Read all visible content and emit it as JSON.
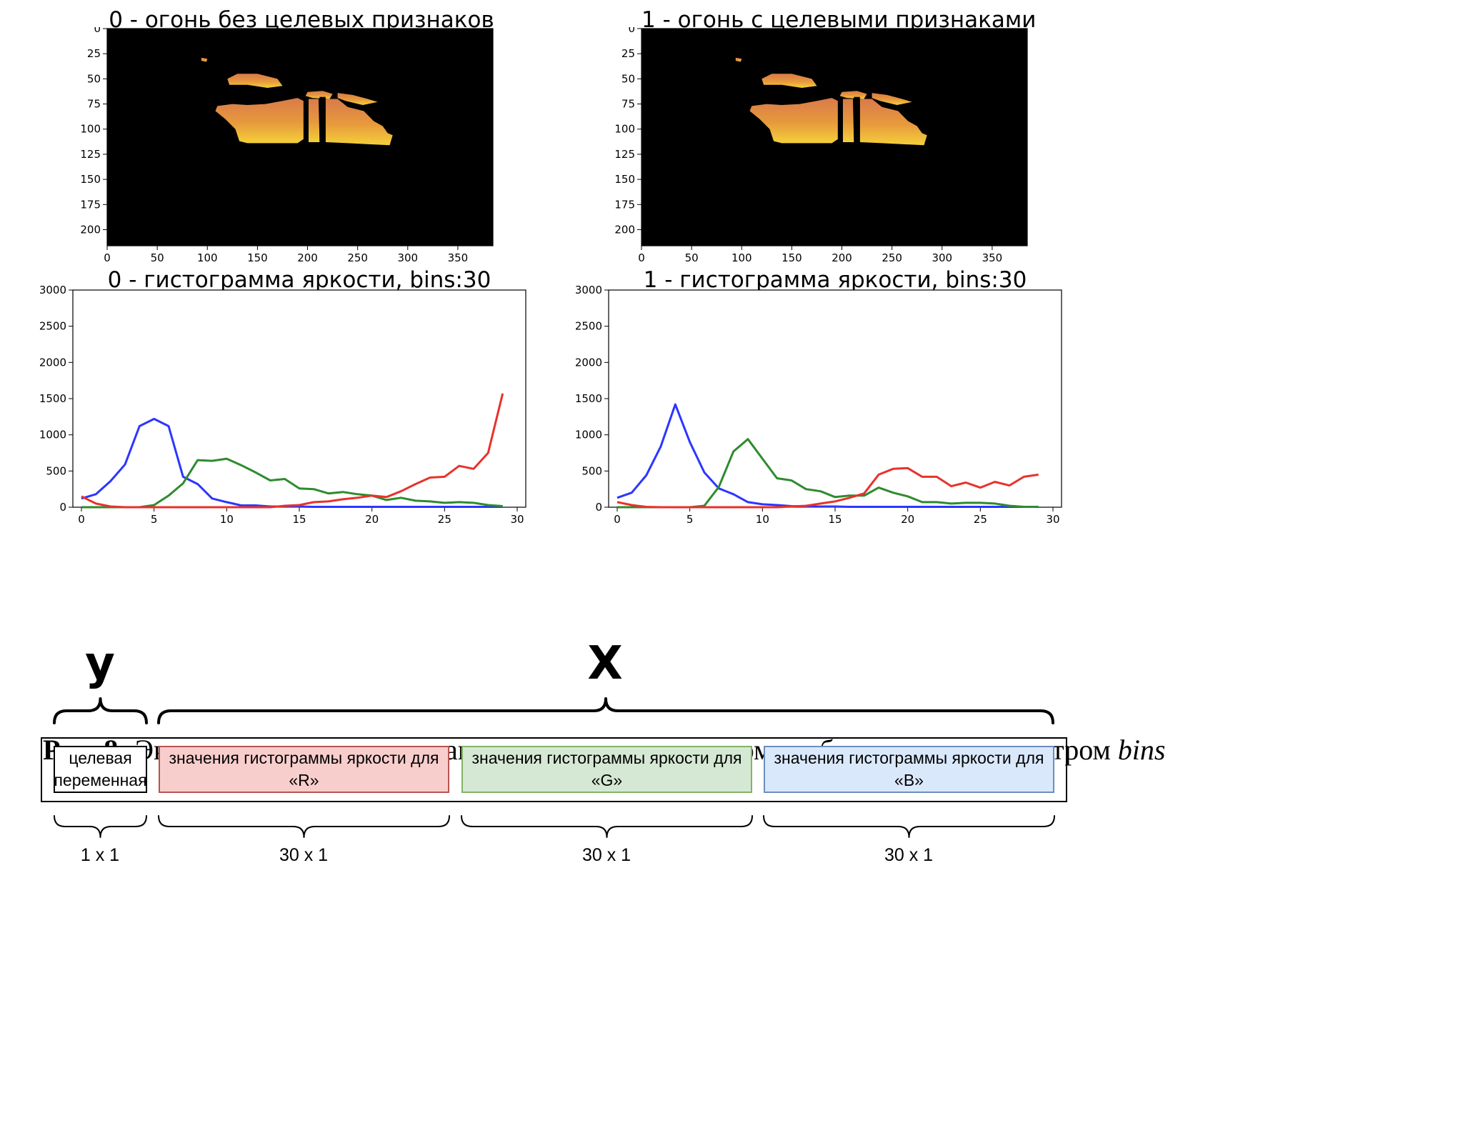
{
  "figure": {
    "panels": [
      {
        "title": "0 - огонь без целевых признаков"
      },
      {
        "title": "1 - огонь с целевыми признаками"
      },
      {
        "title": "0 - гистограмма яркости, bins:30"
      },
      {
        "title": "1 - гистограмма яркости, bins:30"
      }
    ],
    "image_axes": {
      "x_ticks": [
        "0",
        "50",
        "100",
        "150",
        "200",
        "250",
        "300",
        "350"
      ],
      "y_ticks": [
        "0",
        "25",
        "50",
        "75",
        "100",
        "125",
        "150",
        "175",
        "200"
      ]
    },
    "caption": {
      "label": "Рис. 8:",
      "text": "Экстракиця признаков пламени на детектированном изображении с параметром",
      "math": "bins"
    }
  },
  "chart_data": [
    {
      "type": "line",
      "title": "0 - гистограмма яркости, bins:30",
      "xlim": [
        0,
        30
      ],
      "ylim": [
        0,
        3000
      ],
      "x_ticks": [
        0,
        5,
        10,
        15,
        20,
        25,
        30
      ],
      "y_ticks": [
        0,
        500,
        1000,
        1500,
        2000,
        2500,
        3000
      ],
      "x": [
        0,
        1,
        2,
        3,
        4,
        5,
        6,
        7,
        8,
        9,
        10,
        11,
        12,
        13,
        14,
        15,
        16,
        17,
        18,
        19,
        20,
        21,
        22,
        23,
        24,
        25,
        26,
        27,
        28,
        29
      ],
      "series": [
        {
          "color": "#2b36ff",
          "values": [
            120,
            180,
            360,
            590,
            1120,
            1220,
            1120,
            420,
            320,
            120,
            70,
            25,
            25,
            10,
            10,
            10,
            5,
            5,
            5,
            5,
            5,
            5,
            5,
            5,
            5,
            5,
            5,
            5,
            5,
            5
          ]
        },
        {
          "color": "#2e8b2e",
          "values": [
            0,
            0,
            0,
            0,
            0,
            30,
            160,
            330,
            650,
            640,
            670,
            580,
            480,
            370,
            390,
            260,
            250,
            190,
            210,
            180,
            160,
            100,
            130,
            90,
            80,
            60,
            70,
            60,
            30,
            15
          ]
        },
        {
          "color": "#e8322c",
          "values": [
            150,
            50,
            10,
            0,
            0,
            0,
            0,
            0,
            0,
            0,
            0,
            0,
            0,
            0,
            20,
            30,
            70,
            80,
            110,
            130,
            160,
            140,
            220,
            320,
            410,
            420,
            570,
            530,
            750,
            1570
          ]
        }
      ],
      "grid": false,
      "legend": "none"
    },
    {
      "type": "line",
      "title": "1 - гистограмма яркости, bins:30",
      "xlim": [
        0,
        30
      ],
      "ylim": [
        0,
        3000
      ],
      "x_ticks": [
        0,
        5,
        10,
        15,
        20,
        25,
        30
      ],
      "y_ticks": [
        0,
        500,
        1000,
        1500,
        2000,
        2500,
        3000
      ],
      "x": [
        0,
        1,
        2,
        3,
        4,
        5,
        6,
        7,
        8,
        9,
        10,
        11,
        12,
        13,
        14,
        15,
        16,
        17,
        18,
        19,
        20,
        21,
        22,
        23,
        24,
        25,
        26,
        27,
        28,
        29
      ],
      "series": [
        {
          "color": "#2b36ff",
          "values": [
            130,
            200,
            440,
            840,
            1420,
            900,
            480,
            260,
            180,
            70,
            40,
            30,
            15,
            10,
            10,
            10,
            5,
            5,
            5,
            5,
            5,
            5,
            5,
            5,
            5,
            5,
            5,
            5,
            5,
            5
          ]
        },
        {
          "color": "#2e8b2e",
          "values": [
            0,
            0,
            0,
            0,
            0,
            0,
            20,
            280,
            770,
            940,
            670,
            400,
            370,
            250,
            220,
            140,
            160,
            160,
            270,
            200,
            150,
            70,
            70,
            50,
            60,
            60,
            50,
            20,
            5,
            5
          ]
        },
        {
          "color": "#e8322c",
          "values": [
            70,
            30,
            5,
            0,
            0,
            0,
            0,
            0,
            0,
            0,
            0,
            0,
            10,
            20,
            50,
            80,
            130,
            190,
            450,
            530,
            540,
            420,
            420,
            290,
            340,
            270,
            350,
            300,
            420,
            450
          ]
        }
      ],
      "grid": false,
      "legend": "none"
    }
  ],
  "diagram": {
    "y_label": "y",
    "x_label": "X",
    "cells": [
      {
        "text": "целевая переменная",
        "dim": "1 x 1",
        "fill": "#ffffff",
        "border": "#000000"
      },
      {
        "text": "значения гистограммы яркости для «R»",
        "dim": "30 x 1",
        "fill": "#f8cecc",
        "border": "#b85450"
      },
      {
        "text": "значения гистограммы яркости для «G»",
        "dim": "30 x 1",
        "fill": "#d5e8d4",
        "border": "#82b366"
      },
      {
        "text": "значения гистограммы яркости для «B»",
        "dim": "30 x 1",
        "fill": "#dae8fc",
        "border": "#6c8ebf"
      }
    ]
  }
}
